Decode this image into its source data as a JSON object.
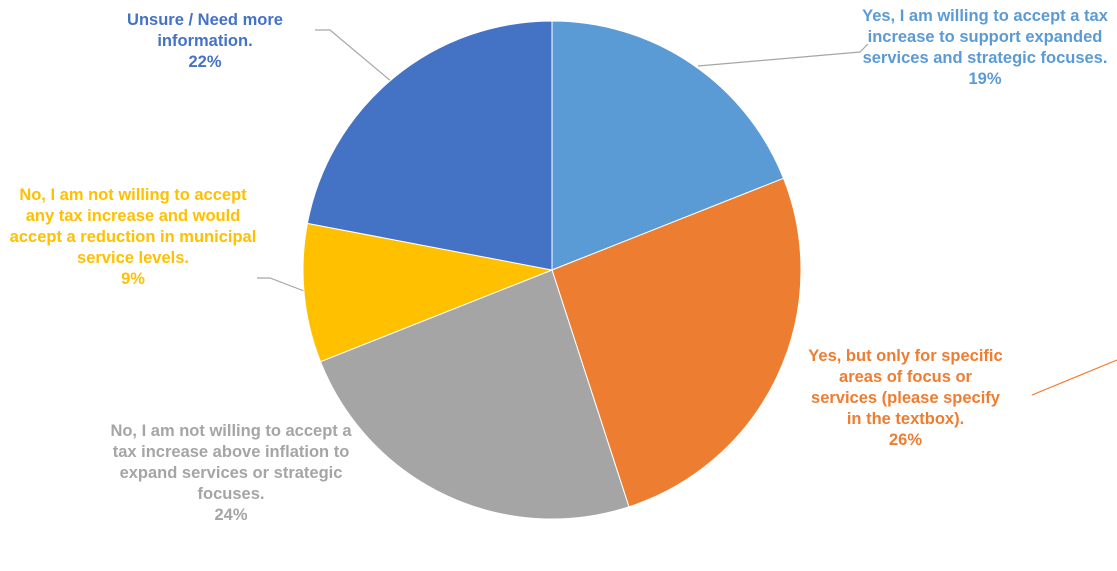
{
  "chart_data": {
    "type": "pie",
    "title": "",
    "start_angle_deg": 0,
    "direction": "clockwise",
    "slices": [
      {
        "label": "Yes, I am willing to accept a tax increase to support expanded services and strategic focuses.",
        "value": 19,
        "percent_label": "19%",
        "color": "#5b9bd5"
      },
      {
        "label": "Yes, but only for specific areas of focus or services (please specify in the textbox).",
        "value": 26,
        "percent_label": "26%",
        "color": "#ed7d31"
      },
      {
        "label": "No, I am not willing to accept a tax increase above inflation to expand services or strategic focuses.",
        "value": 24,
        "percent_label": "24%",
        "color": "#a5a5a5"
      },
      {
        "label": "No, I am not willing to accept any tax increase and would accept a reduction in municipal service levels.",
        "value": 9,
        "percent_label": "9%",
        "color": "#ffc000"
      },
      {
        "label": "Unsure / Need more information.",
        "value": 22,
        "percent_label": "22%",
        "color": "#4472c4"
      }
    ]
  }
}
